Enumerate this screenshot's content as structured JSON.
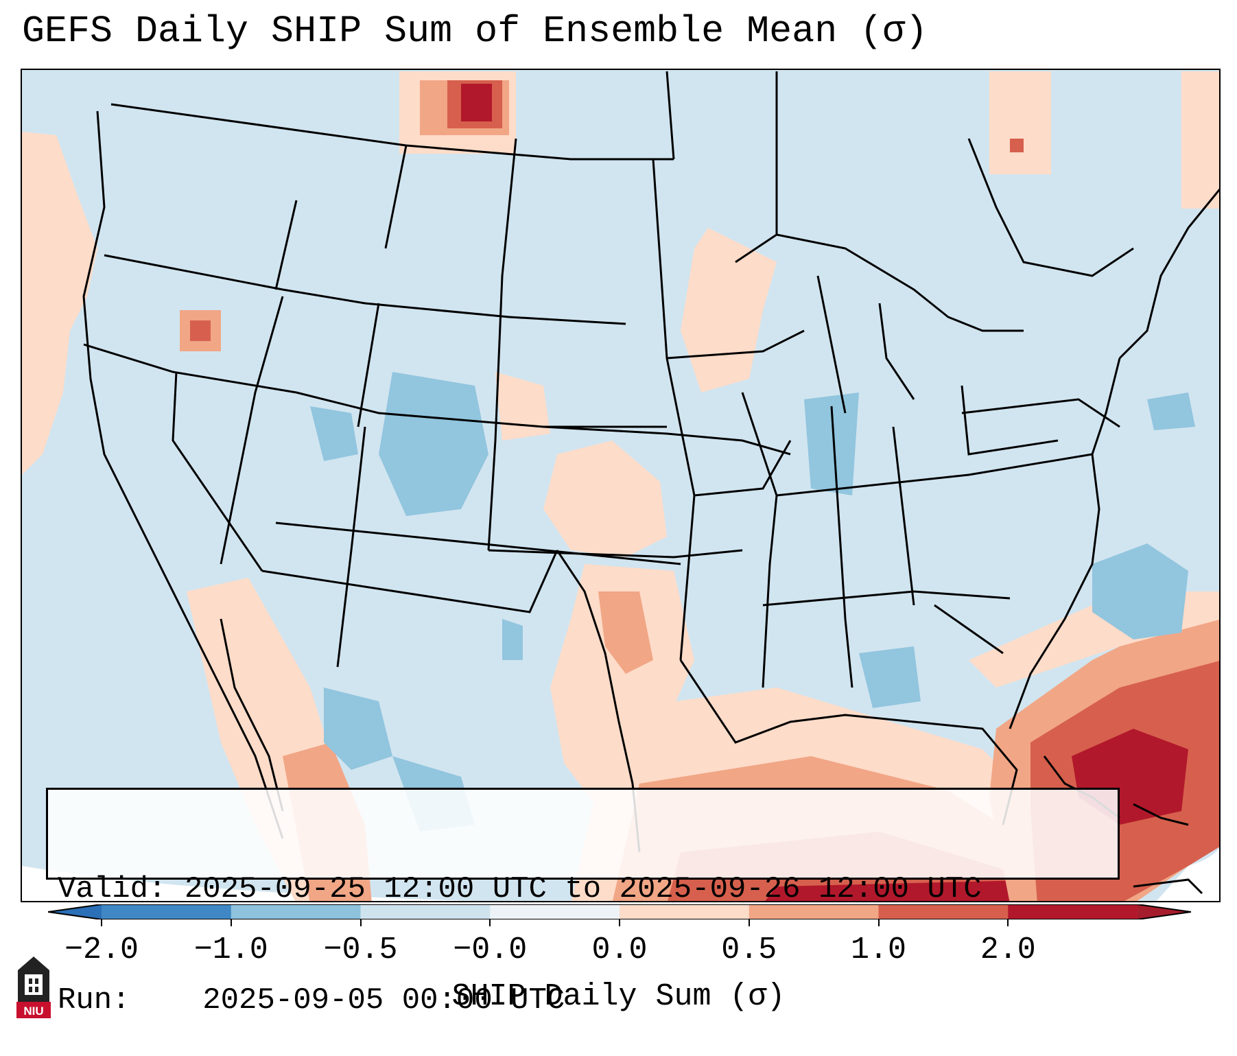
{
  "title": "GEFS Daily SHIP Sum of Ensemble Mean (σ)",
  "info": {
    "valid_label": "Valid:",
    "valid_value": "2025-09-25 12:00 UTC to 2025-09-26 12:00 UTC",
    "run_label": "Run:",
    "run_value": "2025-09-05 00:00 UTC"
  },
  "colorbar": {
    "label": "SHIP Daily Sum (σ)",
    "ticks": [
      "−2.0",
      "−1.0",
      "−0.5",
      "−0.0",
      "0.0",
      "0.5",
      "1.0",
      "2.0"
    ],
    "colors": [
      "#3f88c5",
      "#8ec2dd",
      "#cfe3ef",
      "#eef3f7",
      "#fddcc9",
      "#f1a686",
      "#d6604d",
      "#b2182b"
    ],
    "extend_low_color": "#2b6fb6",
    "extend_high_color": "#a51d2d"
  },
  "map": {
    "type": "gridded-anomaly",
    "region": "Contiguous United States, northern Mexico, Gulf of Mexico, western Atlantic",
    "projection": "Lambert Conformal",
    "background_color": "#d1e5f0",
    "features": [
      "US state borders",
      "coastlines",
      "Canada",
      "Mexico",
      "Cuba",
      "Bahamas"
    ]
  },
  "logo": {
    "text": "NIU",
    "color": "#c8102e"
  }
}
